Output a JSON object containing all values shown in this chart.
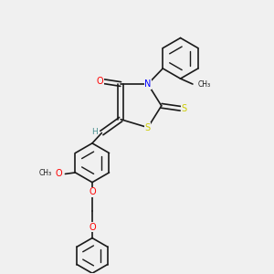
{
  "bg_color": "#f0f0f0",
  "bond_color": "#1a1a1a",
  "atom_colors": {
    "O": "#ff0000",
    "N": "#0000ff",
    "S": "#cccc00",
    "H": "#4a9090",
    "C": "#1a1a1a"
  },
  "font_size_atom": 7,
  "font_size_small": 5.5
}
